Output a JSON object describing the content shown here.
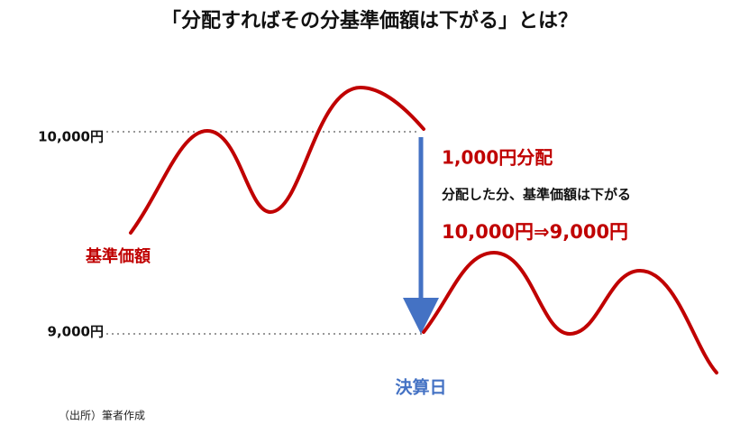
{
  "title": "「分配すればその分基準価額は下がる」とは？",
  "price_labels": {
    "upper": "10,000円",
    "lower": "9,000円"
  },
  "line_label": "基準価額",
  "annotation": {
    "distribution": "1,000円分配",
    "explanation": "分配した分、基準価額は下がる",
    "change": "10,000円⇒9,000円"
  },
  "event_label": "決算日",
  "source": "（出所）筆者作成"
}
